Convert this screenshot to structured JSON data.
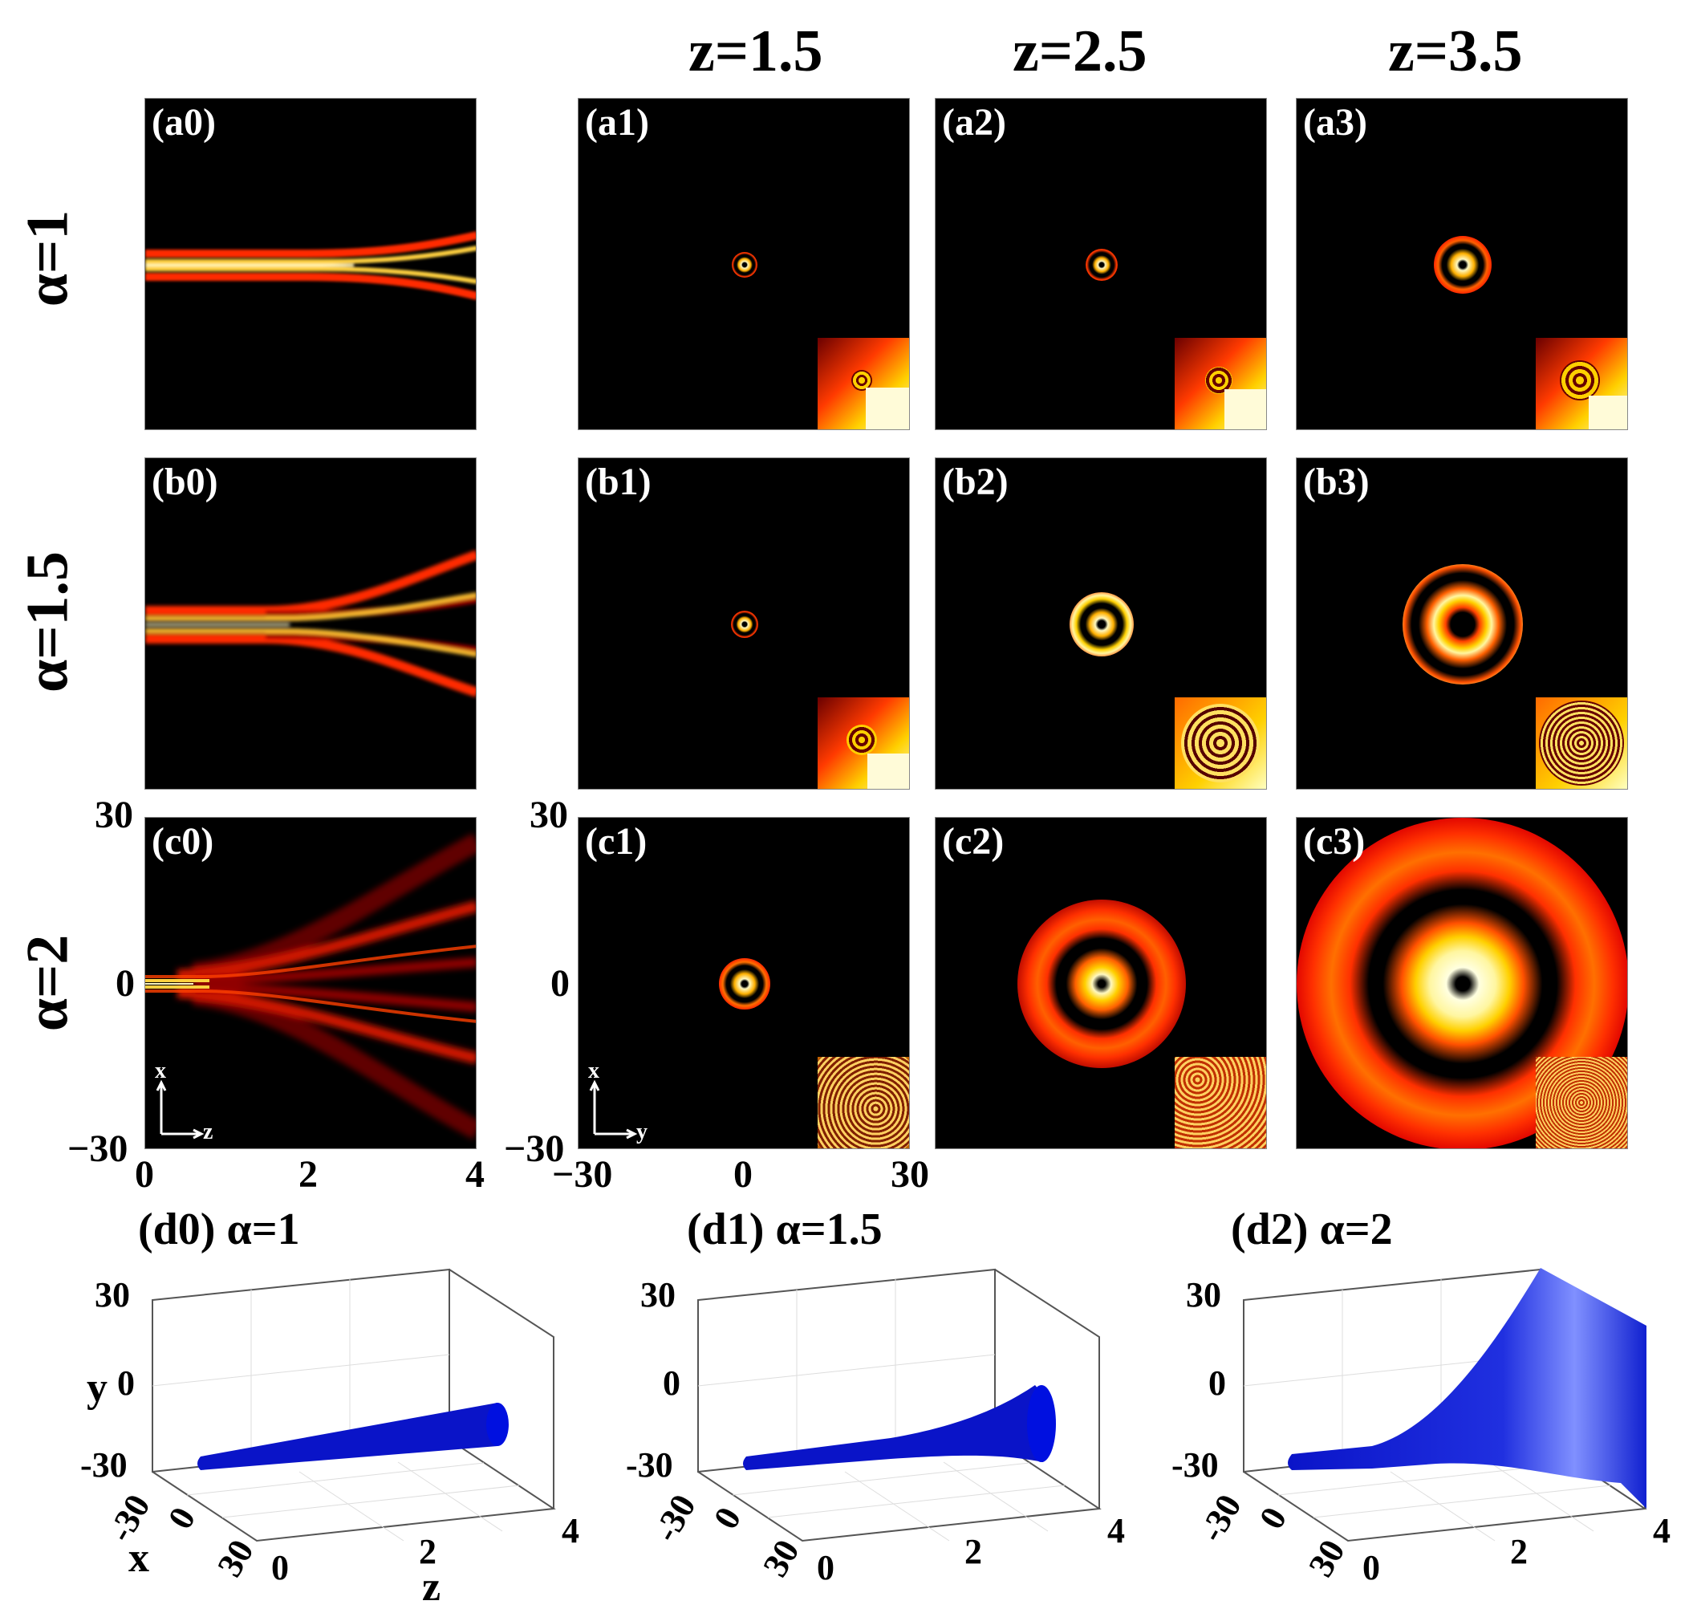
{
  "column_headers": [
    "z=1.5",
    "z=2.5",
    "z=3.5"
  ],
  "row_headers": [
    "α=1",
    "α=1.5",
    "α=2"
  ],
  "panels": {
    "a0": "(a0)",
    "a1": "(a1)",
    "a2": "(a2)",
    "a3": "(a3)",
    "b0": "(b0)",
    "b1": "(b1)",
    "b2": "(b2)",
    "b3": "(b3)",
    "c0": "(c0)",
    "c1": "(c1)",
    "c2": "(c2)",
    "c3": "(c3)"
  },
  "axes": {
    "c0": {
      "x_ticks": [
        "0",
        "2",
        "4"
      ],
      "y_ticks": [
        "30",
        "0",
        "−30"
      ],
      "vertical_label": "x",
      "horizontal_label": "z"
    },
    "c1": {
      "x_ticks": [
        "−30",
        "0",
        "30"
      ],
      "y_ticks": [
        "30",
        "0",
        "−30"
      ],
      "vertical_label": "x",
      "horizontal_label": "y"
    }
  },
  "plots3d": [
    {
      "title": "(d0) α=1"
    },
    {
      "title": "(d1) α=1.5"
    },
    {
      "title": "(d2) α=2"
    }
  ],
  "axes3d": {
    "y_ticks": [
      "30",
      "0",
      "-30"
    ],
    "x_ticks": [
      "-30",
      "0",
      "30"
    ],
    "z_ticks": [
      "0",
      "2",
      "4"
    ],
    "y_label": "y",
    "x_label": "x",
    "z_label": "z"
  },
  "colors": {
    "beam": "#ff3a00",
    "core": "#fff7b0",
    "tube": "#0a14c8",
    "background": "#000000"
  }
}
